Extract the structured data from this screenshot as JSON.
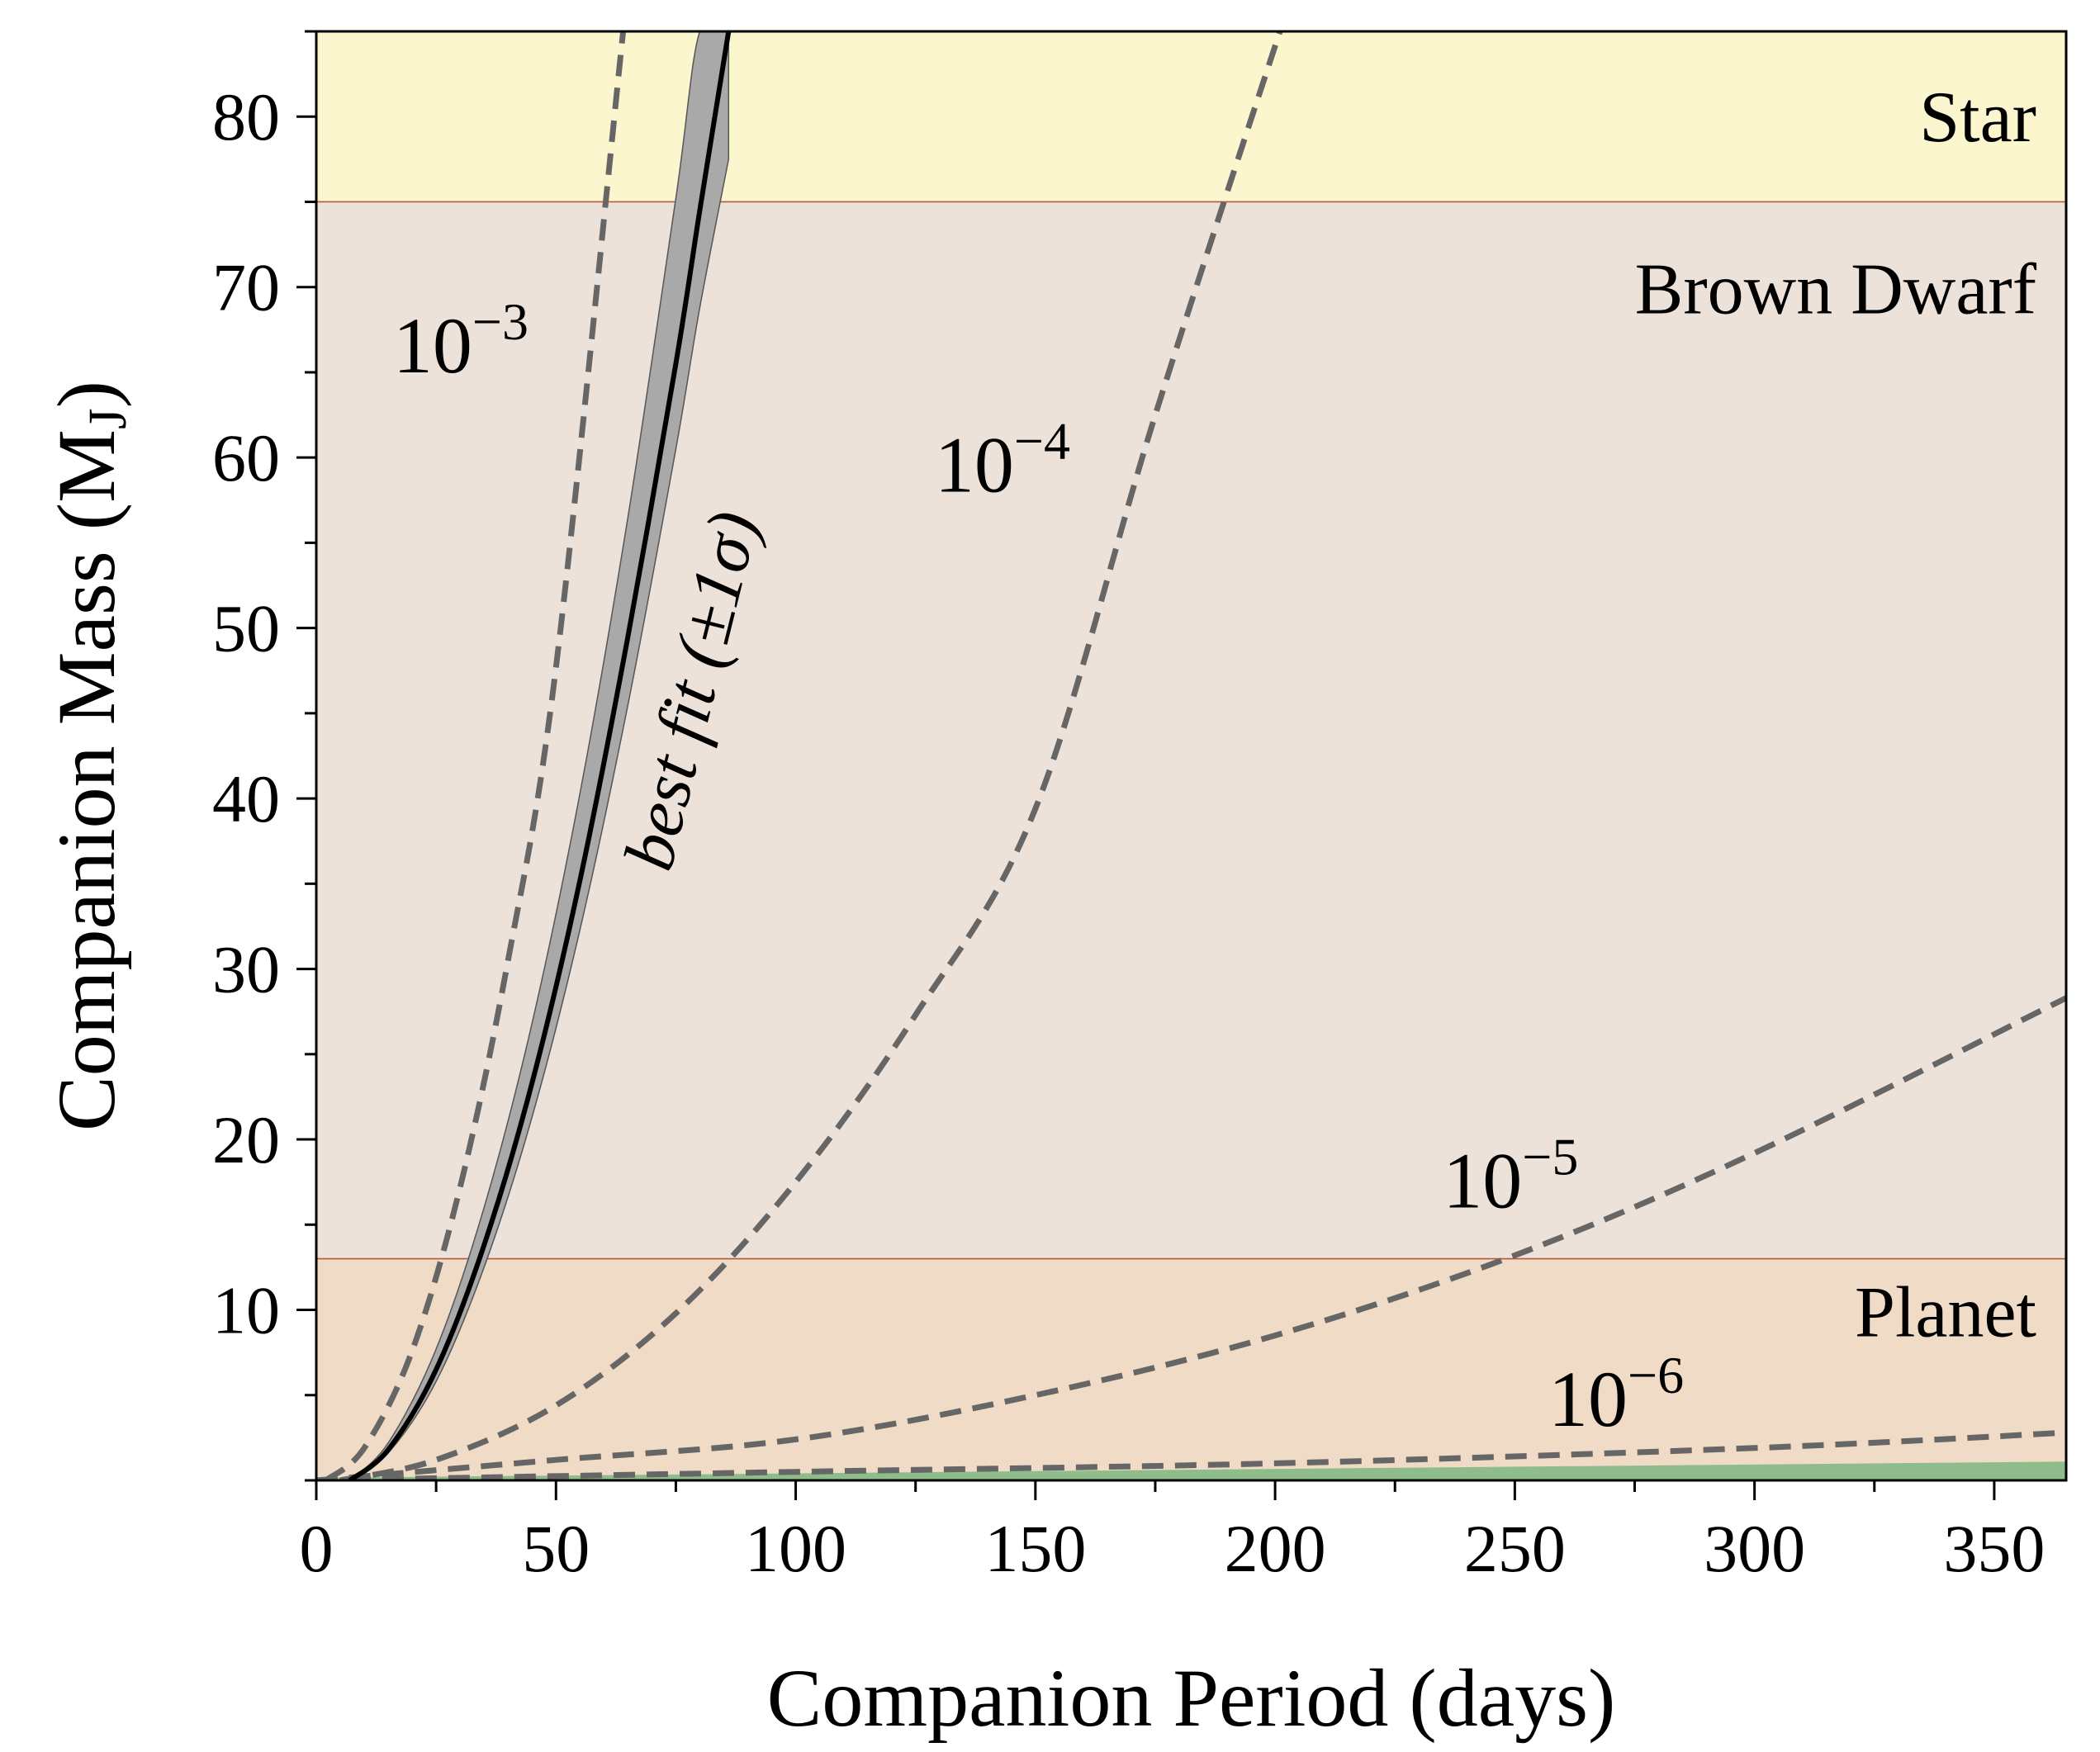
{
  "chart_data": {
    "type": "line",
    "xlabel": "Companion Period (days)",
    "ylabel_main": "Companion Mass (M",
    "ylabel_sub": "J",
    "ylabel_close": ")",
    "xlim": [
      0,
      365
    ],
    "ylim": [
      0,
      85
    ],
    "xticks": [
      0,
      50,
      100,
      150,
      200,
      250,
      300,
      350
    ],
    "yticks": [
      10,
      20,
      30,
      40,
      50,
      60,
      70,
      80
    ],
    "xminor_step": 25,
    "yminor_step": 5,
    "grid": false,
    "regions": [
      {
        "label": "Planet",
        "y0": 0,
        "y1": 13,
        "color": "#efdbc6"
      },
      {
        "label": "Brown Dwarf",
        "y0": 13,
        "y1": 75,
        "color": "#ede2da"
      },
      {
        "label": "Star",
        "y0": 75,
        "y1": 85,
        "color": "#fcf6cf"
      }
    ],
    "region_line_color": "#b5593a",
    "excluded_band": {
      "color": "#8fbc8b",
      "ymax_at_xmax": 1.1
    },
    "best_fit": {
      "label": "best fit (±1σ)",
      "center_color": "#000000",
      "band_color": "#a9a9a9",
      "x": [
        7,
        15,
        25,
        35,
        45,
        55,
        65,
        75,
        80,
        86
      ],
      "y": [
        0,
        1.8,
        6.5,
        13.8,
        23.3,
        35.2,
        49.5,
        65.5,
        74.5,
        85
      ],
      "y_lower": [
        0,
        1.6,
        5.8,
        12.5,
        21.3,
        32.3,
        45.5,
        60.5,
        68.8,
        77.5
      ],
      "y_upper": [
        0,
        2.2,
        7.7,
        16.0,
        26.8,
        40.3,
        56.5,
        75.2,
        85,
        85
      ]
    },
    "reference_curves": [
      {
        "base": "10",
        "exponent": "−3",
        "x": [
          2,
          10,
          20,
          30,
          40,
          50,
          64
        ],
        "y": [
          0,
          1.9,
          7.6,
          17.2,
          30.5,
          47.7,
          85
        ],
        "color": "#666666"
      },
      {
        "base": "10",
        "exponent": "−4",
        "x": [
          5,
          25,
          50,
          75,
          100,
          125,
          150,
          175,
          201
        ],
        "y": [
          0,
          1.2,
          4.4,
          9.8,
          17.5,
          27.3,
          39.4,
          62.5,
          85
        ],
        "color": "#666666"
      },
      {
        "base": "10",
        "exponent": "−5",
        "x": [
          0,
          50,
          100,
          150,
          200,
          250,
          300,
          365
        ],
        "y": [
          0,
          1.2,
          2.4,
          5.0,
          8.5,
          13.2,
          19.2,
          28.3
        ],
        "color": "#666666"
      },
      {
        "base": "10",
        "exponent": "−6",
        "x": [
          0,
          100,
          200,
          300,
          365
        ],
        "y": [
          0,
          0.5,
          1.0,
          1.9,
          2.8
        ],
        "color": "#666666"
      }
    ]
  }
}
